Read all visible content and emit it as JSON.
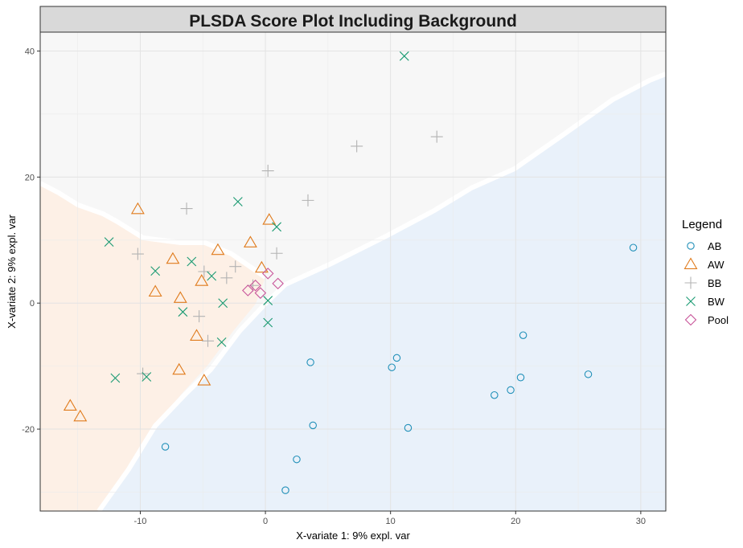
{
  "chart_data": {
    "type": "scatter",
    "title": "PLSDA Score Plot Including Background",
    "xlabel": "X-variate 1: 9% expl. var",
    "ylabel": "X-variate 2: 9% expl. var",
    "xlim": [
      -18,
      32
    ],
    "ylim": [
      -33,
      43
    ],
    "x_ticks": [
      -10,
      0,
      10,
      20,
      30
    ],
    "y_ticks": [
      -20,
      0,
      20,
      40
    ],
    "grid": true,
    "legend": {
      "title": "Legend",
      "position": "right"
    },
    "background_regions": [
      {
        "class": "AW",
        "color": "#fdf0e6"
      },
      {
        "class": "BB",
        "color": "#f7f7f7"
      },
      {
        "class": "AB",
        "color": "#e9f1fa"
      }
    ],
    "series": [
      {
        "name": "AB",
        "marker": "circle",
        "color": "#1f8fb8",
        "points": [
          [
            29.4,
            8.8
          ],
          [
            25.8,
            -11.3
          ],
          [
            20.6,
            -5.1
          ],
          [
            20.4,
            -11.8
          ],
          [
            19.6,
            -13.8
          ],
          [
            18.3,
            -14.6
          ],
          [
            11.4,
            -19.8
          ],
          [
            10.5,
            -8.7
          ],
          [
            10.1,
            -10.2
          ],
          [
            3.8,
            -19.4
          ],
          [
            3.6,
            -9.4
          ],
          [
            2.5,
            -24.8
          ],
          [
            1.6,
            -29.7
          ],
          [
            -8.0,
            -22.8
          ]
        ]
      },
      {
        "name": "AW",
        "marker": "triangle",
        "color": "#e07b1c",
        "points": [
          [
            -15.6,
            -16.3
          ],
          [
            -14.8,
            -18.0
          ],
          [
            -10.2,
            14.9
          ],
          [
            -8.8,
            1.8
          ],
          [
            -7.4,
            7.0
          ],
          [
            -6.8,
            0.8
          ],
          [
            -6.9,
            -10.6
          ],
          [
            -5.5,
            -5.2
          ],
          [
            -5.1,
            3.5
          ],
          [
            -4.9,
            -12.3
          ],
          [
            -3.8,
            8.4
          ],
          [
            -1.2,
            9.6
          ],
          [
            0.3,
            13.2
          ],
          [
            -0.3,
            5.6
          ]
        ]
      },
      {
        "name": "BB",
        "marker": "plus",
        "color": "#b3b3b3",
        "points": [
          [
            13.7,
            26.4
          ],
          [
            7.3,
            24.9
          ],
          [
            3.4,
            16.3
          ],
          [
            0.2,
            21.0
          ],
          [
            -6.3,
            15.0
          ],
          [
            -10.2,
            7.8
          ],
          [
            -9.8,
            -11.2
          ],
          [
            -5.3,
            -2.1
          ],
          [
            -4.9,
            5.0
          ],
          [
            -4.6,
            -6.0
          ],
          [
            -3.1,
            4.0
          ],
          [
            -2.4,
            5.8
          ],
          [
            0.9,
            7.9
          ],
          [
            -1.0,
            2.8
          ]
        ]
      },
      {
        "name": "BW",
        "marker": "x",
        "color": "#1a9a72",
        "points": [
          [
            11.1,
            39.2
          ],
          [
            -2.2,
            16.1
          ],
          [
            0.9,
            12.1
          ],
          [
            -12.5,
            9.7
          ],
          [
            -5.9,
            6.6
          ],
          [
            -8.8,
            5.1
          ],
          [
            -4.3,
            4.3
          ],
          [
            -6.6,
            -1.4
          ],
          [
            -3.4,
            0.0
          ],
          [
            0.2,
            0.4
          ],
          [
            0.2,
            -3.1
          ],
          [
            -3.5,
            -6.2
          ],
          [
            -12.0,
            -11.9
          ],
          [
            -9.5,
            -11.7
          ]
        ]
      },
      {
        "name": "Pool",
        "marker": "diamond",
        "color": "#c8559a",
        "points": [
          [
            -1.4,
            2.0
          ],
          [
            -0.8,
            2.8
          ],
          [
            -0.4,
            1.6
          ],
          [
            0.2,
            4.7
          ],
          [
            1.0,
            3.1
          ]
        ]
      }
    ]
  }
}
